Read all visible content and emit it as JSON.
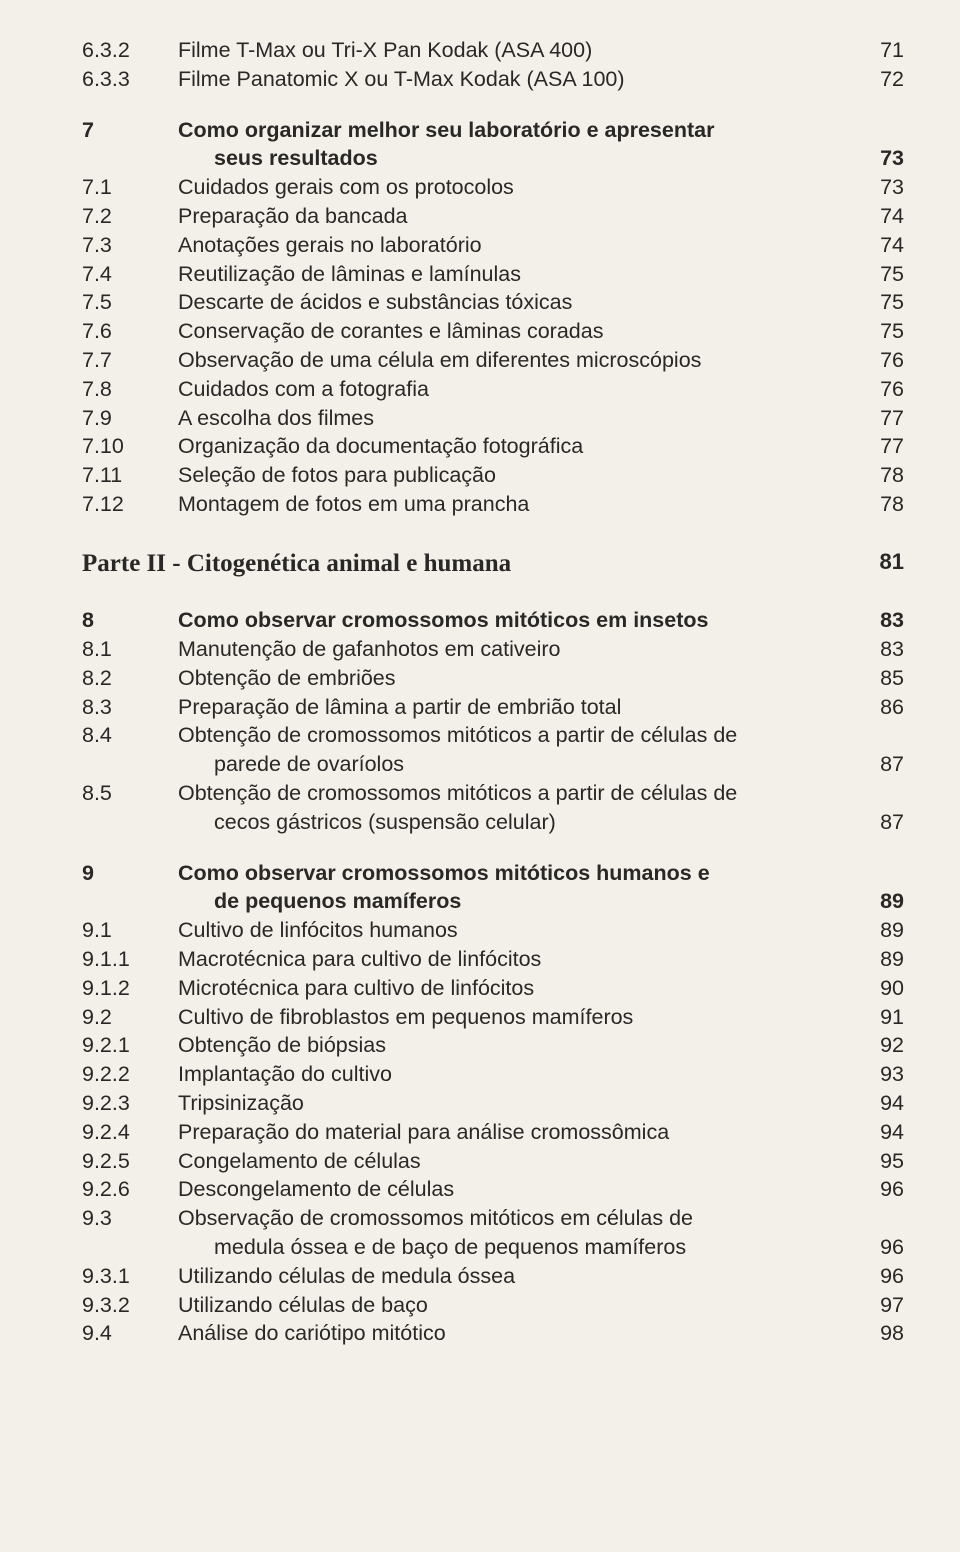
{
  "part": {
    "title": "Parte II - Citogenética animal e humana",
    "page": "81"
  },
  "rows": [
    {
      "n": "6.3.2",
      "t": "Filme T-Max ou Tri-X Pan Kodak  (ASA 400)",
      "p": "71"
    },
    {
      "n": "6.3.3",
      "t": "Filme Panatomic X ou T-Max Kodak (ASA 100)",
      "p": "72"
    },
    {
      "n": "7",
      "t": "Como organizar melhor seu laboratório e apresentar",
      "p": "",
      "bold": true,
      "gap": true
    },
    {
      "n": "",
      "t": "seus resultados",
      "p": "73",
      "bold": true,
      "cont": true,
      "indent": true
    },
    {
      "n": "7.1",
      "t": "Cuidados gerais com os protocolos",
      "p": "73"
    },
    {
      "n": "7.2",
      "t": "Preparação da bancada",
      "p": "74"
    },
    {
      "n": "7.3",
      "t": "Anotações gerais no laboratório",
      "p": "74"
    },
    {
      "n": "7.4",
      "t": "Reutilização de lâminas e lamínulas",
      "p": "75"
    },
    {
      "n": "7.5",
      "t": "Descarte de ácidos e substâncias tóxicas",
      "p": "75"
    },
    {
      "n": "7.6",
      "t": "Conservação de corantes e lâminas coradas",
      "p": "75"
    },
    {
      "n": "7.7",
      "t": "Observação de uma célula em diferentes microscópios",
      "p": "76"
    },
    {
      "n": "7.8",
      "t": "Cuidados com a fotografia",
      "p": "76"
    },
    {
      "n": "7.9",
      "t": "A escolha dos filmes",
      "p": "77"
    },
    {
      "n": "7.10",
      "t": "Organização da documentação fotográfica",
      "p": "77"
    },
    {
      "n": "7.11",
      "t": "Seleção de fotos para publicação",
      "p": "78"
    },
    {
      "n": "7.12",
      "t": "Montagem de fotos em uma prancha",
      "p": "78"
    },
    {
      "part": true
    },
    {
      "n": "8",
      "t": "Como observar cromossomos mitóticos em insetos",
      "p": "83",
      "bold": true
    },
    {
      "n": "8.1",
      "t": "Manutenção de gafanhotos em cativeiro",
      "p": "83"
    },
    {
      "n": "8.2",
      "t": "Obtenção de embriões",
      "p": "85"
    },
    {
      "n": "8.3",
      "t": "Preparação de lâmina a partir de embrião total",
      "p": "86"
    },
    {
      "n": "8.4",
      "t": "Obtenção de cromossomos mitóticos a partir de células de",
      "p": ""
    },
    {
      "n": "",
      "t": "parede de ovaríolos",
      "p": "87",
      "cont": true,
      "indent": true
    },
    {
      "n": "8.5",
      "t": "Obtenção de cromossomos mitóticos a partir de células de",
      "p": ""
    },
    {
      "n": "",
      "t": "cecos gástricos (suspensão celular)",
      "p": "87",
      "cont": true,
      "indent": true
    },
    {
      "n": "9",
      "t": "Como observar cromossomos mitóticos humanos e",
      "p": "",
      "bold": true,
      "gap": true
    },
    {
      "n": "",
      "t": "de pequenos mamíferos",
      "p": "89",
      "bold": true,
      "cont": true,
      "indent": true
    },
    {
      "n": "9.1",
      "t": "Cultivo de linfócitos humanos",
      "p": "89"
    },
    {
      "n": "9.1.1",
      "t": "Macrotécnica para cultivo de linfócitos",
      "p": "89"
    },
    {
      "n": "9.1.2",
      "t": "Microtécnica para cultivo de linfócitos",
      "p": "90"
    },
    {
      "n": "9.2",
      "t": "Cultivo de fibroblastos em pequenos mamíferos",
      "p": "91"
    },
    {
      "n": "9.2.1",
      "t": "Obtenção de biópsias",
      "p": "92"
    },
    {
      "n": "9.2.2",
      "t": "Implantação do cultivo",
      "p": "93"
    },
    {
      "n": "9.2.3",
      "t": "Tripsinização",
      "p": "94"
    },
    {
      "n": "9.2.4",
      "t": "Preparação do material para análise cromossômica",
      "p": "94"
    },
    {
      "n": "9.2.5",
      "t": "Congelamento de células",
      "p": "95"
    },
    {
      "n": "9.2.6",
      "t": "Descongelamento de células",
      "p": "96"
    },
    {
      "n": "9.3",
      "t": "Observação de cromossomos mitóticos em células de",
      "p": ""
    },
    {
      "n": "",
      "t": "medula óssea e de baço de pequenos mamíferos",
      "p": "96",
      "cont": true,
      "indent": true
    },
    {
      "n": "9.3.1",
      "t": "Utilizando células de medula óssea",
      "p": "96"
    },
    {
      "n": "9.3.2",
      "t": "Utilizando células de baço",
      "p": "97"
    },
    {
      "n": "9.4",
      "t": "Análise do cariótipo mitótico",
      "p": "98"
    }
  ]
}
